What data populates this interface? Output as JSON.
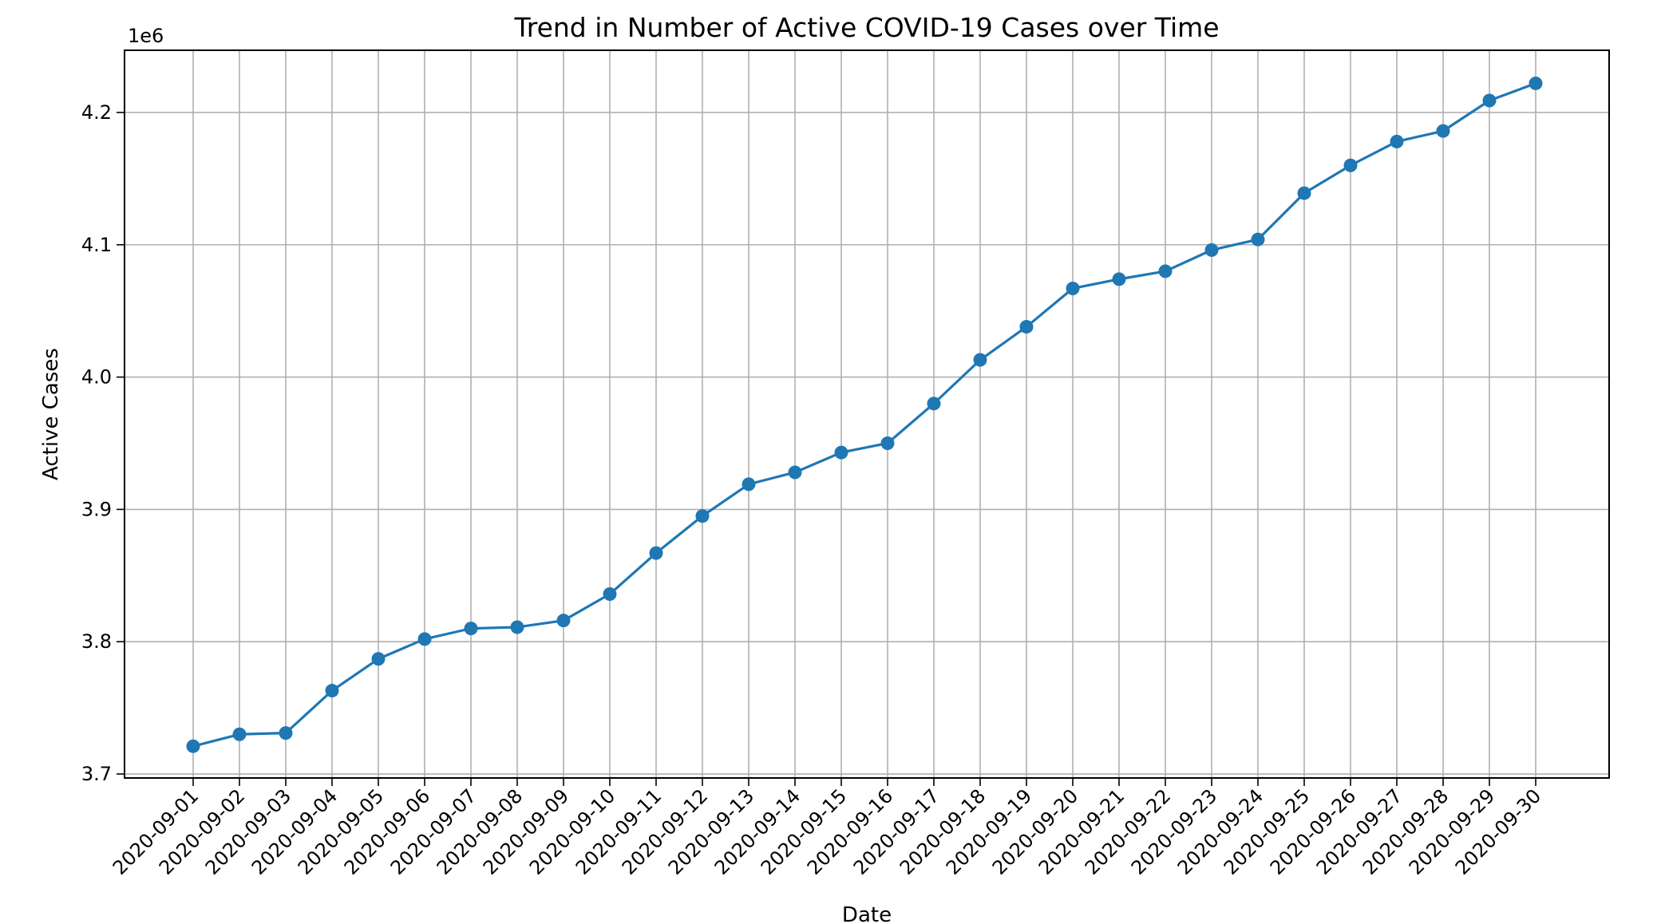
{
  "chart_data": {
    "type": "line",
    "title": "Trend in Number of Active COVID-19 Cases over Time",
    "xlabel": "Date",
    "ylabel": "Active Cases",
    "y_offset_label": "1e6",
    "ylim": [
      3.697,
      4.247
    ],
    "yticks": [
      3.7,
      3.8,
      3.9,
      4.0,
      4.1,
      4.2
    ],
    "ytick_labels": [
      "3.7",
      "3.8",
      "3.9",
      "4.0",
      "4.1",
      "4.2"
    ],
    "grid": true,
    "legend": "none",
    "x_tick_rotation_deg": 45,
    "x": [
      "2020-09-01",
      "2020-09-02",
      "2020-09-03",
      "2020-09-04",
      "2020-09-05",
      "2020-09-06",
      "2020-09-07",
      "2020-09-08",
      "2020-09-09",
      "2020-09-10",
      "2020-09-11",
      "2020-09-12",
      "2020-09-13",
      "2020-09-14",
      "2020-09-15",
      "2020-09-16",
      "2020-09-17",
      "2020-09-18",
      "2020-09-19",
      "2020-09-20",
      "2020-09-21",
      "2020-09-22",
      "2020-09-23",
      "2020-09-24",
      "2020-09-25",
      "2020-09-26",
      "2020-09-27",
      "2020-09-28",
      "2020-09-29",
      "2020-09-30"
    ],
    "series": [
      {
        "color": "#1f77b4",
        "marker": "circle",
        "values": [
          3.721,
          3.73,
          3.731,
          3.763,
          3.787,
          3.802,
          3.81,
          3.811,
          3.816,
          3.836,
          3.867,
          3.895,
          3.919,
          3.928,
          3.943,
          3.95,
          3.98,
          4.013,
          4.038,
          4.067,
          4.074,
          4.08,
          4.096,
          4.104,
          4.139,
          4.16,
          4.178,
          4.186,
          4.209,
          4.222
        ]
      }
    ]
  }
}
